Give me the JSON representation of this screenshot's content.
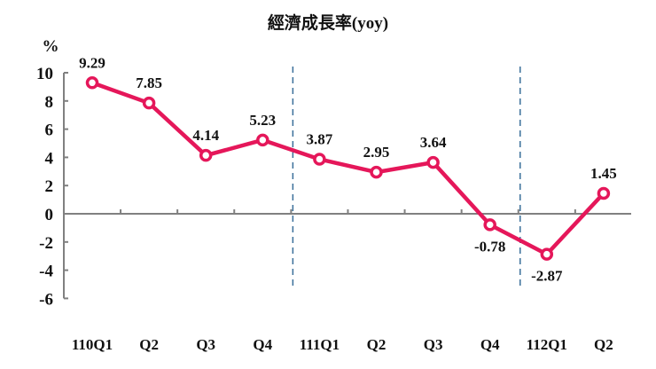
{
  "chart_data": {
    "type": "line",
    "title": "經濟成長率(yoy)",
    "ylabel": "%",
    "xlabel": "",
    "categories": [
      "110Q1",
      "Q2",
      "Q3",
      "Q4",
      "111Q1",
      "Q2",
      "Q3",
      "Q4",
      "112Q1",
      "Q2"
    ],
    "series": [
      {
        "name": "經濟成長率(yoy)",
        "values": [
          9.29,
          7.85,
          4.14,
          5.23,
          3.87,
          2.95,
          3.64,
          -0.78,
          -2.87,
          1.45
        ]
      }
    ],
    "data_labels": [
      "9.29",
      "7.85",
      "4.14",
      "5.23",
      "3.87",
      "2.95",
      "3.64",
      "-0.78",
      "-2.87",
      "1.45"
    ],
    "ylim": [
      -6,
      10
    ],
    "yticks": [
      "10",
      "8",
      "6",
      "4",
      "2",
      "0",
      "-2",
      "-4",
      "-6"
    ],
    "year_separators_after_index": [
      3,
      7
    ],
    "grid": false,
    "legend": "none",
    "colors": {
      "line": "#e5175a",
      "axis": "#808080",
      "separator": "#3a6f9a"
    }
  }
}
